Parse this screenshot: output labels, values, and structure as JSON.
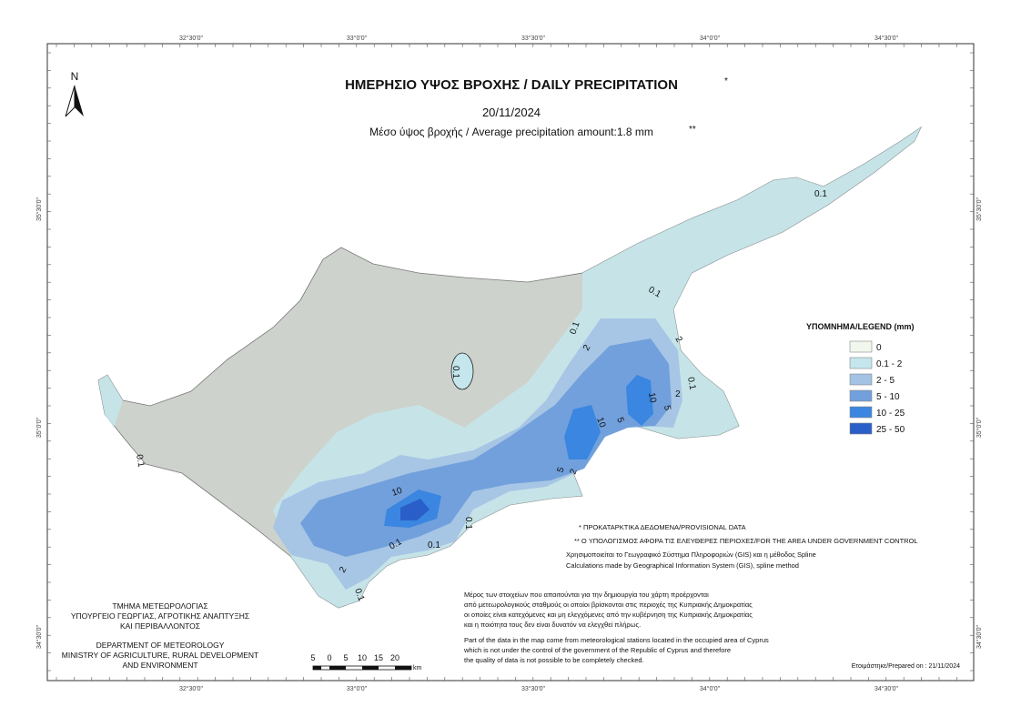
{
  "title": "ΗΜΕΡΗΣΙΟ ΥΨΟΣ ΒΡΟΧΗΣ / DAILY PRECIPITATION",
  "title_mark": "*",
  "date": "20/11/2024",
  "average": "Μέσο ύψος βροχής / Average precipitation amount:1.8  mm",
  "average_mark": "**",
  "north": "N",
  "coords": {
    "top": [
      "32°30'0\"",
      "33°0'0\"",
      "33°30'0\"",
      "34°0'0\"",
      "34°30'0\""
    ],
    "bottom": [
      "32°30'0\"",
      "33°0'0\"",
      "33°30'0\"",
      "34°0'0\"",
      "34°30'0\""
    ],
    "left": [
      "35°30'0\"",
      "35°0'0\"",
      "34°30'0\""
    ],
    "right": [
      "35°30'0\"",
      "35°0'0\"",
      "34°30'0\""
    ]
  },
  "legend": {
    "title": "ΥΠΟΜΝΗΜΑ/LEGEND (mm)",
    "items": [
      {
        "label": "0",
        "color": "#f2f7ee"
      },
      {
        "label": "0.1 - 2",
        "color": "#c4e6ec"
      },
      {
        "label": "2 - 5",
        "color": "#a3c2e4"
      },
      {
        "label": "5 - 10",
        "color": "#72a0dc"
      },
      {
        "label": "10 - 25",
        "color": "#3a86e0"
      },
      {
        "label": "25 - 50",
        "color": "#2a5ec8"
      }
    ]
  },
  "notes": [
    "* ΠΡΟΚΑΤΑΡΚΤΙΚΑ ΔΕΔΟΜΕΝΑ/PROVISIONAL DATA",
    "** Ο ΥΠΟΛΟΓΙΣΜΟΣ ΑΦΟΡΑ ΤΙΣ ΕΛΕΥΘΕΡΕΣ ΠΕΡΙΟΧΕΣ/FOR THE AREA UNDER GOVERNMENT CONTROL"
  ],
  "gis": [
    "Χρησιμοποιείται το Γεωγραφικό Σύστημα Πληροφοριών (GIS) και η μέθοδος Spline",
    "Calculations made by Geographical Information System (GIS), spline method"
  ],
  "disclaimer_gr": [
    "Μέρος των στοιχείων που απαιτούνται για την δημιουργία του χάρτη προέρχονται",
    "από μετεωρολογικούς σταθμούς οι οποίοι βρίσκονται στις περιοχές της Κυπριακής Δημοκρατίας",
    "οι οποίες είναι κατεχόμενες και μη ελεγχόμενες από την κυβέρνηση της Κυπριακής Δημοκρατίας",
    "και η ποιότητα τους δεν είναι δυνατόν να ελεγχθεί πλήρως."
  ],
  "disclaimer_en": [
    "Part of the data in the map come from meteorological stations located in the occupied area of Cyprus",
    "which is not under the control of the government of the Republic of Cyprus and therefore",
    "the quality of data is not possible to be completely checked."
  ],
  "department_gr": [
    "ΤΜΗΜΑ ΜΕΤΕΩΡΟΛΟΓΙΑΣ",
    "ΥΠΟΥΡΓΕΙΟ ΓΕΩΡΓΙΑΣ, ΑΓΡΟΤΙΚΗΣ ΑΝΑΠΤΥΞΗΣ",
    "ΚΑΙ ΠΕΡΙΒΑΛΛΟΝΤΟΣ"
  ],
  "department_en": [
    "DEPARTMENT OF METEOROLOGY",
    "MINISTRY OF AGRICULTURE, RURAL DEVELOPMENT",
    "AND ENVIRONMENT"
  ],
  "scale": {
    "labels": [
      "5",
      "0",
      "5",
      "10",
      "15",
      "20"
    ],
    "unit": "km"
  },
  "prepared": "Ετοιμάστηκε/Prepared on : 21/11/2024",
  "contour_labels": [
    "0.1",
    "0.1",
    "0.1",
    "2",
    "2",
    "2",
    "0.1",
    "10",
    "5",
    "10",
    "5",
    "2",
    "5",
    "10",
    "0.1",
    "0.1",
    "2",
    "0.1",
    "0.1",
    "0.1",
    "0.1"
  ]
}
